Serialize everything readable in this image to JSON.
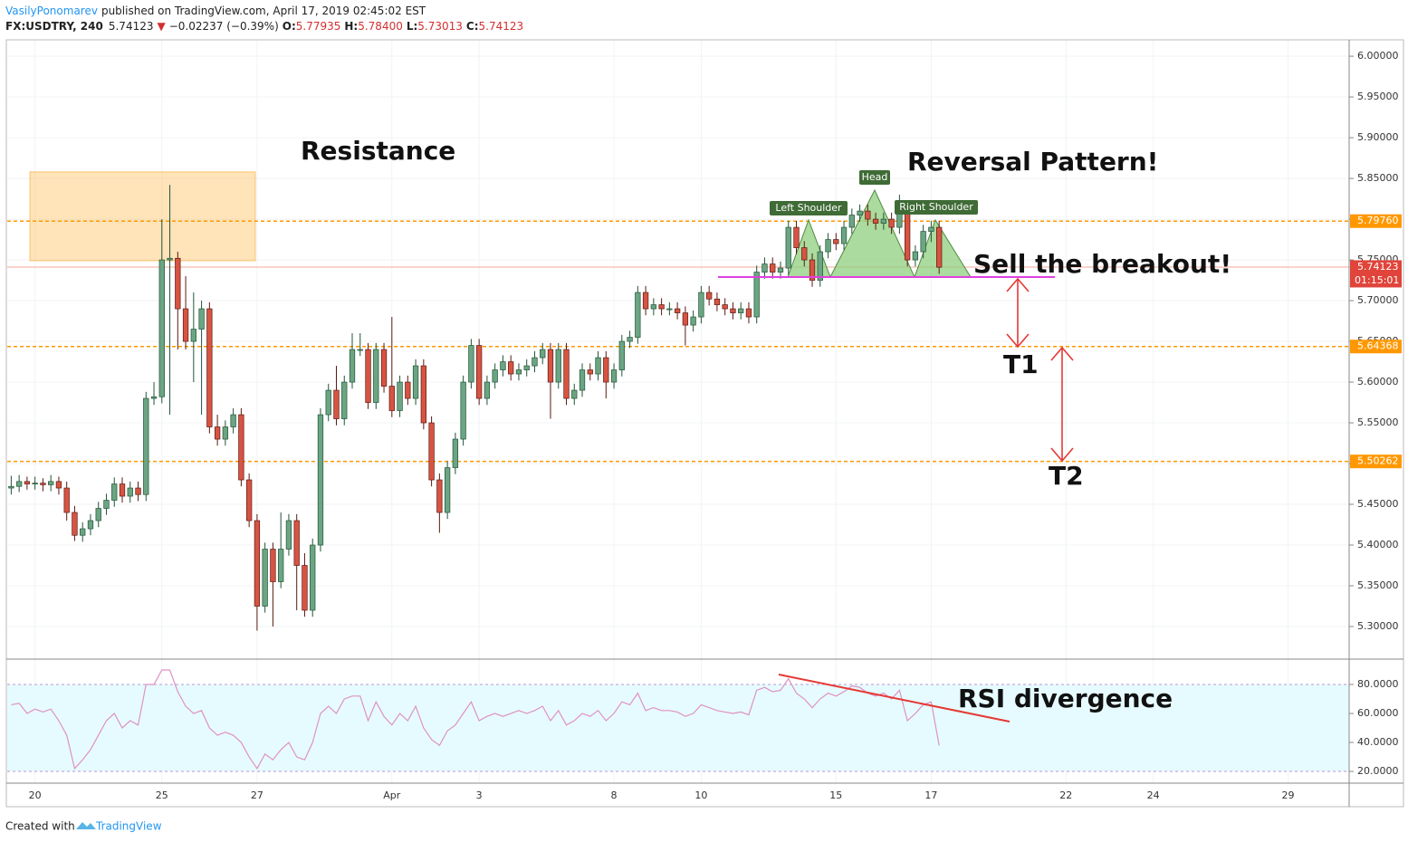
{
  "chart_data": {
    "type": "candlestick",
    "header": {
      "author": "VasilyPonomarev",
      "published": "published on TradingView.com, April 17, 2019 02:45:02 EST",
      "symbol": "FX:USDTRY, 240",
      "price": "5.74123",
      "arrow": "▼",
      "change": "−0.02237 (−0.39%)",
      "o_label": "O:",
      "o": "5.77935",
      "h_label": "H:",
      "h": "5.78400",
      "l_label": "L:",
      "l": "5.73013",
      "c_label": "C:",
      "c": "5.74123"
    },
    "footer": {
      "created": "Created with",
      "brand": "TradingView"
    },
    "up_color": "#6ba583",
    "down_color": "#d75442",
    "xlim": [
      -0.5,
      168.7
    ],
    "xticks": [
      {
        "value": 3,
        "label": "20"
      },
      {
        "value": 19,
        "label": "25"
      },
      {
        "value": 31,
        "label": "27"
      },
      {
        "value": 48,
        "label": "Apr"
      },
      {
        "value": 59,
        "label": "3"
      },
      {
        "value": 76,
        "label": "8"
      },
      {
        "value": 87,
        "label": "10"
      },
      {
        "value": 104,
        "label": "15"
      },
      {
        "value": 116,
        "label": "17"
      },
      {
        "value": 133,
        "label": "22"
      },
      {
        "value": 144,
        "label": "24"
      },
      {
        "value": 161,
        "label": "29"
      }
    ],
    "ylim": [
      5.26,
      6.019
    ],
    "yticks": [
      {
        "value": 5.3,
        "label": "5.30000"
      },
      {
        "value": 5.35,
        "label": "5.35000"
      },
      {
        "value": 5.4,
        "label": "5.40000"
      },
      {
        "value": 5.45,
        "label": "5.45000"
      },
      {
        "value": 5.5,
        "label": "5.50000"
      },
      {
        "value": 5.55,
        "label": "5.55000"
      },
      {
        "value": 5.6,
        "label": "5.60000"
      },
      {
        "value": 5.65,
        "label": "5.65000"
      },
      {
        "value": 5.7,
        "label": "5.70000"
      },
      {
        "value": 5.75,
        "label": "5.75000"
      },
      {
        "value": 5.8,
        "label": "5.80000"
      },
      {
        "value": 5.85,
        "label": "5.85000"
      },
      {
        "value": 5.9,
        "label": "5.90000"
      },
      {
        "value": 5.95,
        "label": "5.95000"
      },
      {
        "value": 6.0,
        "label": "6.00000"
      }
    ],
    "grid": true,
    "levels": [
      {
        "value": 5.7976,
        "label": "5.79760"
      },
      {
        "value": 5.64368,
        "label": "5.64368"
      },
      {
        "value": 5.50262,
        "label": "5.50262"
      }
    ],
    "level_color": "#ff9800",
    "last": {
      "value": 5.74123,
      "label": "5.74123",
      "countdown": "01:15:01",
      "color": "#e0443a"
    },
    "zone": {
      "top": 5.858,
      "bottom": 5.749
    },
    "neckline": 5.729,
    "annotations": {
      "resistance": "Resistance",
      "reversal": "Reversal Pattern!",
      "head": "Head",
      "left_shoulder": "Left Shoulder",
      "right_shoulder": "Right Shoulder",
      "sell": "Sell the breakout!",
      "t1": "T1",
      "t2": "T2",
      "rsi_div": "RSI divergence"
    },
    "ohlc": [
      [
        5.47,
        5.485,
        5.462,
        5.472
      ],
      [
        5.472,
        5.486,
        5.465,
        5.478
      ],
      [
        5.478,
        5.484,
        5.468,
        5.475
      ],
      [
        5.475,
        5.484,
        5.468,
        5.476
      ],
      [
        5.476,
        5.482,
        5.466,
        5.474
      ],
      [
        5.474,
        5.486,
        5.466,
        5.478
      ],
      [
        5.478,
        5.484,
        5.462,
        5.47
      ],
      [
        5.47,
        5.478,
        5.43,
        5.44
      ],
      [
        5.44,
        5.448,
        5.405,
        5.412
      ],
      [
        5.412,
        5.428,
        5.404,
        5.42
      ],
      [
        5.42,
        5.438,
        5.412,
        5.43
      ],
      [
        5.43,
        5.453,
        5.422,
        5.445
      ],
      [
        5.445,
        5.463,
        5.437,
        5.455
      ],
      [
        5.455,
        5.483,
        5.447,
        5.475
      ],
      [
        5.475,
        5.483,
        5.452,
        5.46
      ],
      [
        5.46,
        5.478,
        5.452,
        5.47
      ],
      [
        5.47,
        5.478,
        5.454,
        5.462
      ],
      [
        5.462,
        5.588,
        5.454,
        5.58
      ],
      [
        5.58,
        5.6,
        5.572,
        5.582
      ],
      [
        5.582,
        5.8,
        5.574,
        5.75
      ],
      [
        5.75,
        5.842,
        5.56,
        5.752
      ],
      [
        5.752,
        5.76,
        5.64,
        5.69
      ],
      [
        5.69,
        5.73,
        5.64,
        5.65
      ],
      [
        5.65,
        5.71,
        5.6,
        5.665
      ],
      [
        5.665,
        5.7,
        5.56,
        5.69
      ],
      [
        5.69,
        5.698,
        5.537,
        5.545
      ],
      [
        5.545,
        5.56,
        5.522,
        5.53
      ],
      [
        5.53,
        5.553,
        5.522,
        5.545
      ],
      [
        5.545,
        5.568,
        5.537,
        5.56
      ],
      [
        5.56,
        5.568,
        5.472,
        5.48
      ],
      [
        5.48,
        5.488,
        5.422,
        5.43
      ],
      [
        5.43,
        5.438,
        5.295,
        5.325
      ],
      [
        5.325,
        5.403,
        5.317,
        5.395
      ],
      [
        5.395,
        5.403,
        5.3,
        5.355
      ],
      [
        5.355,
        5.44,
        5.347,
        5.395
      ],
      [
        5.395,
        5.438,
        5.387,
        5.43
      ],
      [
        5.43,
        5.438,
        5.32,
        5.375
      ],
      [
        5.375,
        5.39,
        5.312,
        5.32
      ],
      [
        5.32,
        5.408,
        5.312,
        5.4
      ],
      [
        5.4,
        5.568,
        5.392,
        5.56
      ],
      [
        5.56,
        5.598,
        5.552,
        5.59
      ],
      [
        5.59,
        5.62,
        5.547,
        5.555
      ],
      [
        5.555,
        5.608,
        5.547,
        5.6
      ],
      [
        5.6,
        5.66,
        5.592,
        5.64
      ],
      [
        5.64,
        5.66,
        5.632,
        5.64
      ],
      [
        5.64,
        5.648,
        5.567,
        5.575
      ],
      [
        5.575,
        5.648,
        5.567,
        5.64
      ],
      [
        5.64,
        5.648,
        5.587,
        5.595
      ],
      [
        5.595,
        5.68,
        5.557,
        5.565
      ],
      [
        5.565,
        5.608,
        5.557,
        5.6
      ],
      [
        5.6,
        5.608,
        5.572,
        5.58
      ],
      [
        5.58,
        5.628,
        5.572,
        5.62
      ],
      [
        5.62,
        5.628,
        5.542,
        5.55
      ],
      [
        5.55,
        5.558,
        5.472,
        5.48
      ],
      [
        5.48,
        5.488,
        5.415,
        5.44
      ],
      [
        5.44,
        5.503,
        5.432,
        5.495
      ],
      [
        5.495,
        5.538,
        5.487,
        5.53
      ],
      [
        5.53,
        5.608,
        5.522,
        5.6
      ],
      [
        5.6,
        5.653,
        5.592,
        5.645
      ],
      [
        5.645,
        5.653,
        5.572,
        5.58
      ],
      [
        5.58,
        5.608,
        5.572,
        5.6
      ],
      [
        5.6,
        5.623,
        5.592,
        5.615
      ],
      [
        5.615,
        5.633,
        5.607,
        5.625
      ],
      [
        5.625,
        5.633,
        5.602,
        5.61
      ],
      [
        5.61,
        5.623,
        5.602,
        5.615
      ],
      [
        5.615,
        5.628,
        5.607,
        5.62
      ],
      [
        5.62,
        5.638,
        5.612,
        5.63
      ],
      [
        5.63,
        5.648,
        5.622,
        5.64
      ],
      [
        5.64,
        5.648,
        5.555,
        5.6
      ],
      [
        5.6,
        5.648,
        5.592,
        5.64
      ],
      [
        5.64,
        5.648,
        5.572,
        5.58
      ],
      [
        5.58,
        5.598,
        5.572,
        5.59
      ],
      [
        5.59,
        5.623,
        5.582,
        5.615
      ],
      [
        5.615,
        5.623,
        5.602,
        5.61
      ],
      [
        5.61,
        5.638,
        5.602,
        5.63
      ],
      [
        5.63,
        5.638,
        5.58,
        5.6
      ],
      [
        5.6,
        5.623,
        5.592,
        5.615
      ],
      [
        5.615,
        5.658,
        5.607,
        5.65
      ],
      [
        5.65,
        5.663,
        5.642,
        5.655
      ],
      [
        5.655,
        5.718,
        5.647,
        5.71
      ],
      [
        5.71,
        5.718,
        5.682,
        5.69
      ],
      [
        5.69,
        5.703,
        5.682,
        5.695
      ],
      [
        5.695,
        5.703,
        5.682,
        5.69
      ],
      [
        5.69,
        5.698,
        5.682,
        5.69
      ],
      [
        5.69,
        5.698,
        5.677,
        5.685
      ],
      [
        5.685,
        5.693,
        5.645,
        5.67
      ],
      [
        5.67,
        5.688,
        5.662,
        5.68
      ],
      [
        5.68,
        5.718,
        5.672,
        5.71
      ],
      [
        5.71,
        5.718,
        5.694,
        5.702
      ],
      [
        5.702,
        5.71,
        5.687,
        5.695
      ],
      [
        5.695,
        5.703,
        5.682,
        5.69
      ],
      [
        5.69,
        5.698,
        5.677,
        5.685
      ],
      [
        5.685,
        5.698,
        5.677,
        5.69
      ],
      [
        5.69,
        5.698,
        5.672,
        5.68
      ],
      [
        5.68,
        5.743,
        5.672,
        5.735
      ],
      [
        5.735,
        5.753,
        5.727,
        5.745
      ],
      [
        5.745,
        5.753,
        5.727,
        5.735
      ],
      [
        5.735,
        5.748,
        5.727,
        5.74
      ],
      [
        5.74,
        5.798,
        5.732,
        5.79
      ],
      [
        5.79,
        5.798,
        5.757,
        5.765
      ],
      [
        5.765,
        5.773,
        5.742,
        5.75
      ],
      [
        5.75,
        5.758,
        5.717,
        5.725
      ],
      [
        5.725,
        5.768,
        5.717,
        5.76
      ],
      [
        5.76,
        5.783,
        5.752,
        5.775
      ],
      [
        5.775,
        5.783,
        5.762,
        5.77
      ],
      [
        5.77,
        5.798,
        5.762,
        5.79
      ],
      [
        5.79,
        5.813,
        5.782,
        5.805
      ],
      [
        5.805,
        5.818,
        5.797,
        5.81
      ],
      [
        5.81,
        5.818,
        5.792,
        5.8
      ],
      [
        5.8,
        5.808,
        5.787,
        5.795
      ],
      [
        5.795,
        5.808,
        5.787,
        5.8
      ],
      [
        5.8,
        5.808,
        5.782,
        5.79
      ],
      [
        5.79,
        5.83,
        5.782,
        5.815
      ],
      [
        5.815,
        5.823,
        5.742,
        5.75
      ],
      [
        5.75,
        5.768,
        5.742,
        5.76
      ],
      [
        5.76,
        5.793,
        5.752,
        5.785
      ],
      [
        5.785,
        5.798,
        5.772,
        5.79
      ],
      [
        5.79,
        5.798,
        5.733,
        5.741
      ]
    ],
    "rsi": {
      "color": "#e091c4",
      "band_color": "#e6fbff",
      "ylim": [
        11.9,
        97.5
      ],
      "yticks": [
        {
          "value": 20,
          "label": "20.0000"
        },
        {
          "value": 40,
          "label": "40.0000"
        },
        {
          "value": 60,
          "label": "60.0000"
        },
        {
          "value": 80,
          "label": "80.0000"
        }
      ],
      "bands": [
        80,
        20
      ],
      "values": [
        66,
        67,
        60,
        63,
        61,
        63,
        55,
        45,
        22,
        28,
        35,
        45,
        55,
        60,
        50,
        55,
        52,
        80,
        80,
        90,
        90,
        75,
        65,
        60,
        62,
        50,
        45,
        47,
        45,
        40,
        30,
        22,
        32,
        28,
        35,
        40,
        30,
        28,
        40,
        60,
        65,
        60,
        70,
        72,
        72,
        55,
        68,
        58,
        52,
        60,
        55,
        65,
        50,
        42,
        38,
        48,
        52,
        60,
        68,
        55,
        58,
        60,
        58,
        60,
        62,
        60,
        62,
        65,
        55,
        62,
        52,
        55,
        60,
        58,
        62,
        55,
        60,
        68,
        66,
        74,
        62,
        64,
        62,
        62,
        61,
        58,
        60,
        66,
        64,
        62,
        61,
        60,
        61,
        59,
        76,
        78,
        75,
        76,
        84,
        74,
        70,
        64,
        70,
        74,
        72,
        75,
        79,
        78,
        74,
        72,
        74,
        70,
        76,
        55,
        60,
        66,
        68,
        38
      ]
    }
  }
}
